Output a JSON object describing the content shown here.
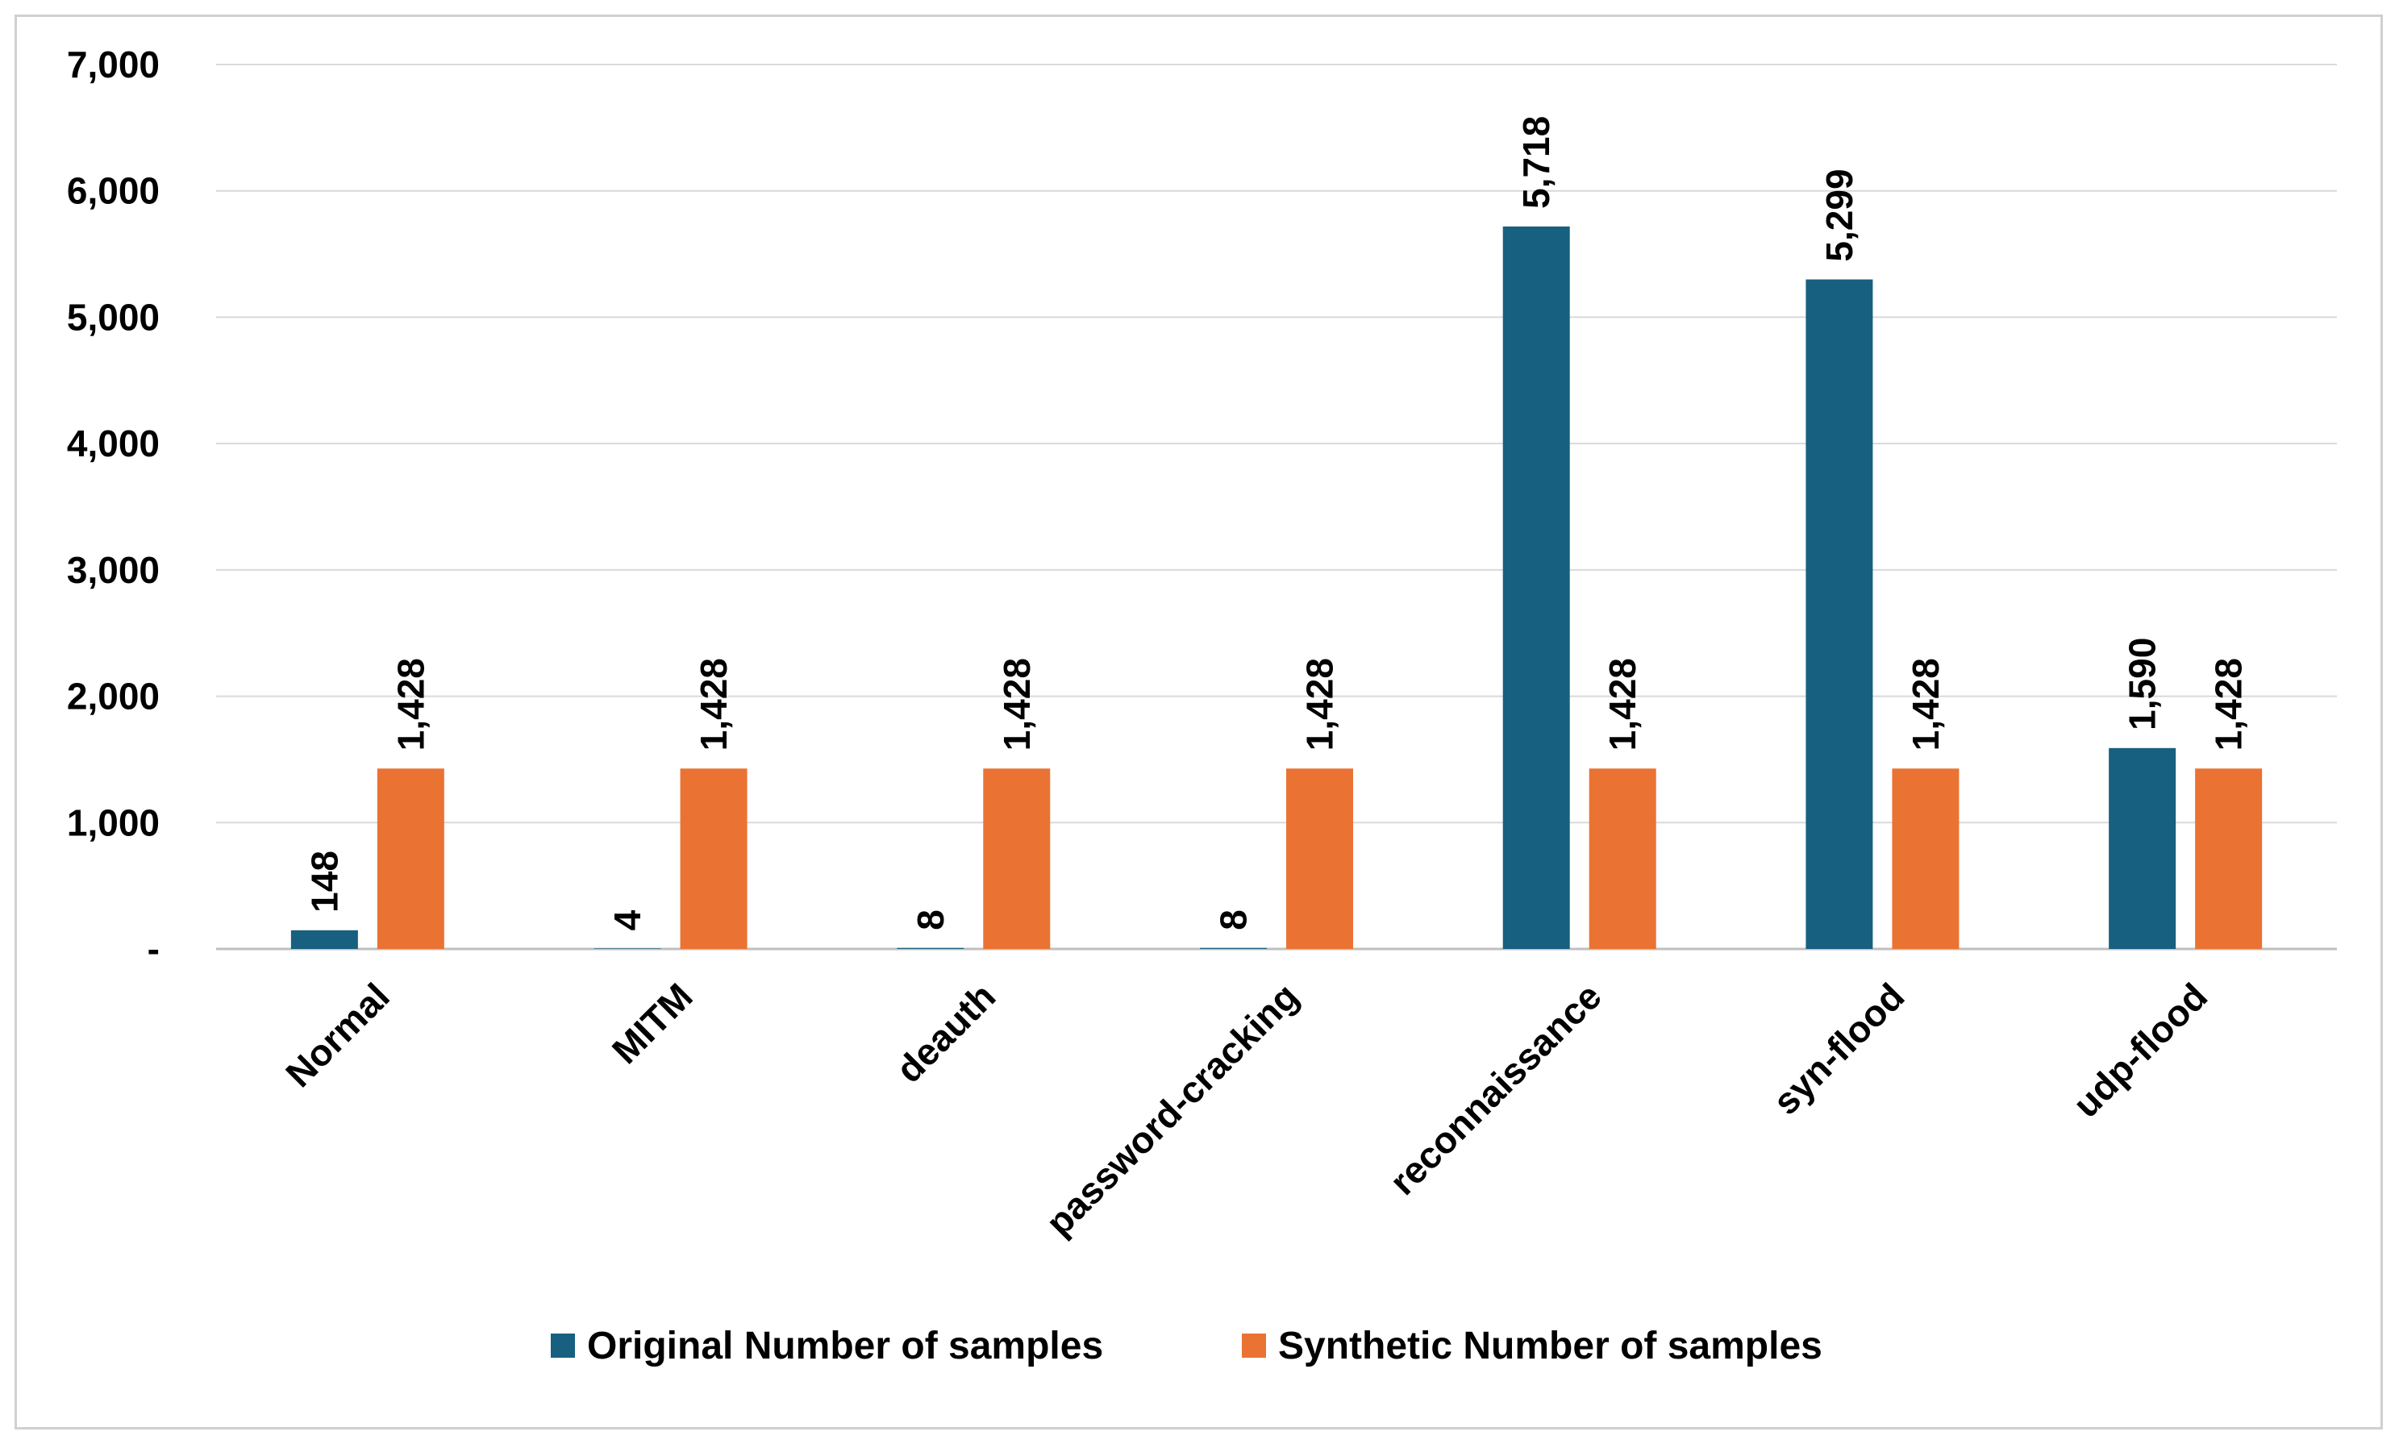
{
  "chart_data": {
    "type": "bar",
    "title": "",
    "xlabel": "",
    "ylabel": "",
    "categories": [
      "Normal",
      "MITM",
      "deauth",
      "password-cracking",
      "reconnaissance",
      "syn-flood",
      "udp-flood"
    ],
    "series": [
      {
        "name": "Original Number of samples",
        "color": "#17607f",
        "values": [
          148,
          4,
          8,
          8,
          5718,
          5299,
          1590
        ],
        "labels": [
          "148",
          "4",
          "8",
          "8",
          "5,718",
          "5,299",
          "1,590"
        ]
      },
      {
        "name": "Synthetic Number of samples",
        "color": "#ea7333",
        "values": [
          1428,
          1428,
          1428,
          1428,
          1428,
          1428,
          1428
        ],
        "labels": [
          "1,428",
          "1,428",
          "1,428",
          "1,428",
          "1,428",
          "1,428",
          "1,428"
        ]
      }
    ],
    "ylim": [
      0,
      7000
    ],
    "yticks": [
      0,
      1000,
      2000,
      3000,
      4000,
      5000,
      6000,
      7000
    ],
    "ytick_labels": [
      "-",
      "1,000",
      "2,000",
      "3,000",
      "4,000",
      "5,000",
      "6,000",
      "7,000"
    ],
    "grid": true,
    "gridline_color": "#d9d9d9",
    "legend_position": "bottom"
  }
}
